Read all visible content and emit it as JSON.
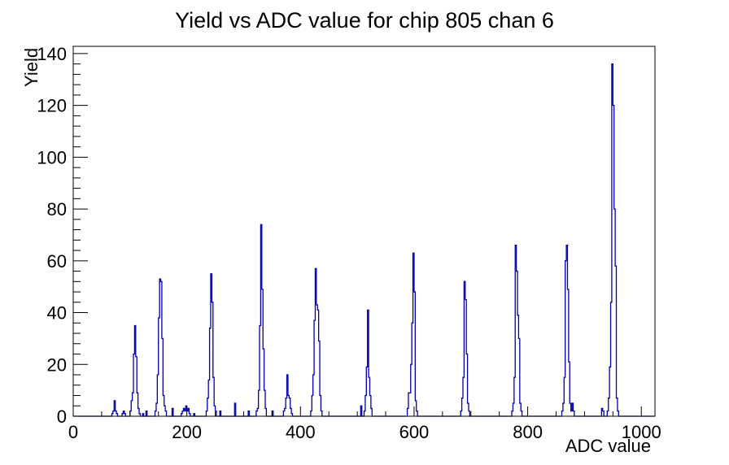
{
  "window": {
    "background": "#ffffff"
  },
  "chart_data": {
    "type": "bar",
    "title": "Yield vs ADC value for chip 805 chan 6",
    "xlabel": "ADC value",
    "ylabel": "Yield",
    "xlim": [
      0,
      1024
    ],
    "ylim": [
      0,
      142.8
    ],
    "x_ticks": [
      0,
      200,
      400,
      600,
      800,
      1000
    ],
    "y_ticks": [
      0,
      20,
      40,
      60,
      80,
      100,
      120,
      140
    ],
    "x_minor_step": 50,
    "y_minor_step": 4,
    "bin_width": 2,
    "grid": false,
    "legend": "none",
    "line_color": "#0000a8",
    "axis_color": "#000000",
    "bins": [
      [
        68,
        1
      ],
      [
        70,
        2
      ],
      [
        72,
        6
      ],
      [
        74,
        2
      ],
      [
        76,
        1
      ],
      [
        86,
        1
      ],
      [
        88,
        2
      ],
      [
        90,
        1
      ],
      [
        100,
        2
      ],
      [
        102,
        6
      ],
      [
        104,
        9
      ],
      [
        106,
        24
      ],
      [
        108,
        35
      ],
      [
        110,
        23
      ],
      [
        112,
        9
      ],
      [
        114,
        3
      ],
      [
        116,
        1
      ],
      [
        122,
        1
      ],
      [
        128,
        2
      ],
      [
        144,
        2
      ],
      [
        146,
        5
      ],
      [
        148,
        16
      ],
      [
        150,
        38
      ],
      [
        152,
        53
      ],
      [
        154,
        52
      ],
      [
        156,
        30
      ],
      [
        158,
        8
      ],
      [
        160,
        4
      ],
      [
        162,
        2
      ],
      [
        174,
        3
      ],
      [
        190,
        1
      ],
      [
        192,
        2
      ],
      [
        194,
        3
      ],
      [
        196,
        2
      ],
      [
        198,
        4
      ],
      [
        200,
        2
      ],
      [
        202,
        3
      ],
      [
        204,
        1
      ],
      [
        212,
        1
      ],
      [
        234,
        2
      ],
      [
        236,
        7
      ],
      [
        238,
        14
      ],
      [
        240,
        34
      ],
      [
        242,
        55
      ],
      [
        244,
        44
      ],
      [
        246,
        15
      ],
      [
        248,
        4
      ],
      [
        250,
        2
      ],
      [
        258,
        2
      ],
      [
        284,
        5
      ],
      [
        308,
        2
      ],
      [
        322,
        2
      ],
      [
        324,
        3
      ],
      [
        326,
        10
      ],
      [
        328,
        35
      ],
      [
        330,
        74
      ],
      [
        332,
        49
      ],
      [
        334,
        26
      ],
      [
        336,
        10
      ],
      [
        338,
        3
      ],
      [
        350,
        2
      ],
      [
        370,
        2
      ],
      [
        372,
        3
      ],
      [
        374,
        7
      ],
      [
        376,
        16
      ],
      [
        378,
        8
      ],
      [
        380,
        7
      ],
      [
        382,
        3
      ],
      [
        384,
        1
      ],
      [
        418,
        2
      ],
      [
        420,
        8
      ],
      [
        422,
        16
      ],
      [
        424,
        37
      ],
      [
        426,
        57
      ],
      [
        428,
        43
      ],
      [
        430,
        41
      ],
      [
        432,
        29
      ],
      [
        434,
        8
      ],
      [
        436,
        2
      ],
      [
        506,
        4
      ],
      [
        512,
        2
      ],
      [
        514,
        8
      ],
      [
        516,
        19
      ],
      [
        518,
        41
      ],
      [
        520,
        15
      ],
      [
        522,
        8
      ],
      [
        524,
        3
      ],
      [
        588,
        3
      ],
      [
        590,
        9
      ],
      [
        592,
        9
      ],
      [
        594,
        20
      ],
      [
        596,
        36
      ],
      [
        598,
        63
      ],
      [
        600,
        48
      ],
      [
        602,
        6
      ],
      [
        604,
        2
      ],
      [
        682,
        2
      ],
      [
        684,
        7
      ],
      [
        686,
        15
      ],
      [
        688,
        52
      ],
      [
        690,
        45
      ],
      [
        692,
        24
      ],
      [
        694,
        5
      ],
      [
        696,
        2
      ],
      [
        772,
        2
      ],
      [
        774,
        5
      ],
      [
        776,
        15
      ],
      [
        778,
        66
      ],
      [
        780,
        56
      ],
      [
        782,
        39
      ],
      [
        784,
        30
      ],
      [
        786,
        5
      ],
      [
        788,
        2
      ],
      [
        860,
        2
      ],
      [
        862,
        5
      ],
      [
        864,
        15
      ],
      [
        866,
        60
      ],
      [
        868,
        66
      ],
      [
        870,
        49
      ],
      [
        872,
        21
      ],
      [
        874,
        5
      ],
      [
        876,
        2
      ],
      [
        878,
        5
      ],
      [
        880,
        2
      ],
      [
        930,
        3
      ],
      [
        932,
        2
      ],
      [
        940,
        2
      ],
      [
        942,
        7
      ],
      [
        944,
        19
      ],
      [
        946,
        44
      ],
      [
        948,
        136
      ],
      [
        950,
        120
      ],
      [
        952,
        80
      ],
      [
        954,
        58
      ],
      [
        956,
        7
      ],
      [
        958,
        2
      ]
    ]
  }
}
